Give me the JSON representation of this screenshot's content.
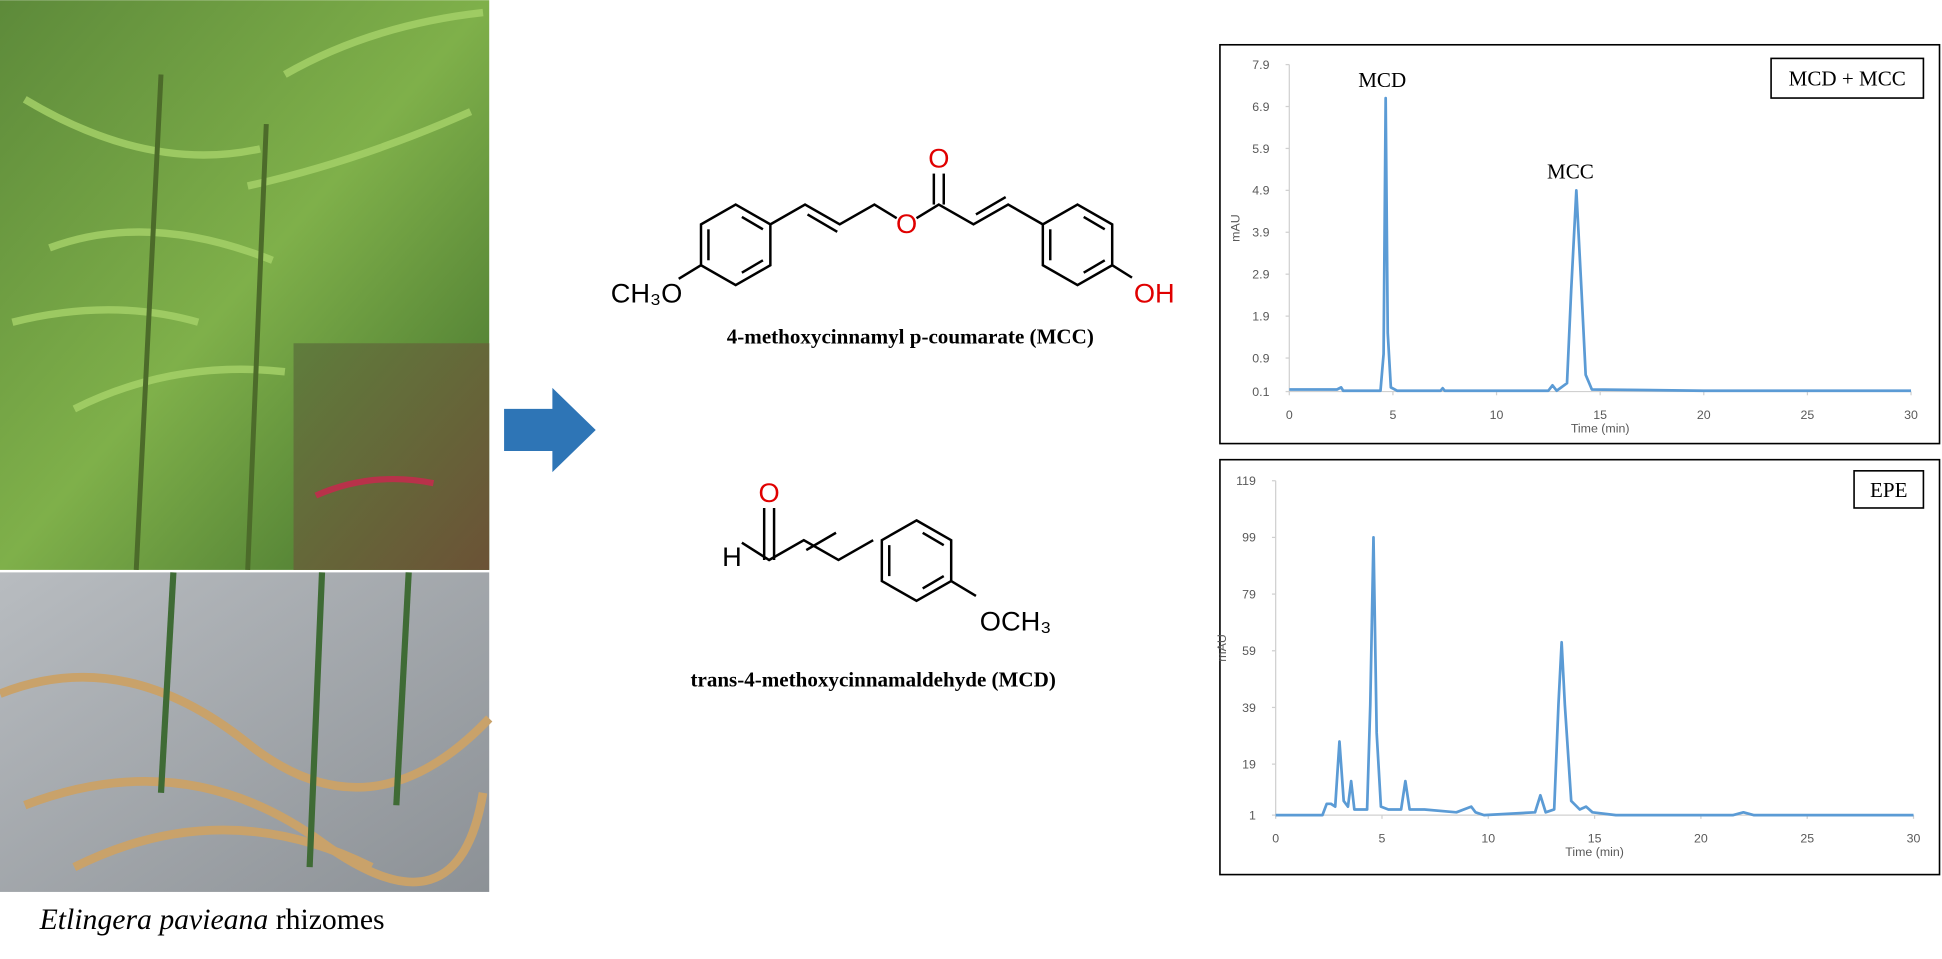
{
  "caption": {
    "species": "Etlingera pavieana",
    "part": "rhizomes"
  },
  "compounds": [
    {
      "name": "4-methoxycinnamyl p-coumarate (MCC)",
      "atoms": [
        "O",
        "CH₃O",
        "O",
        "OH"
      ]
    },
    {
      "name": "trans-4-methoxycinnamaldehyde (MCD)",
      "atoms": [
        "O",
        "H",
        "OCH₃"
      ]
    }
  ],
  "chart_data": [
    {
      "type": "line",
      "xlabel": "Time (min)",
      "ylabel": "mAU",
      "legend": "MCD + MCC",
      "annotations": [
        "MCD",
        "MCC"
      ],
      "x": [
        0,
        2.3,
        2.5,
        2.6,
        4.4,
        4.55,
        4.65,
        4.75,
        4.9,
        5.2,
        7.3,
        7.4,
        7.5,
        12.5,
        12.7,
        12.9,
        13.4,
        13.6,
        13.85,
        14.1,
        14.3,
        14.6,
        20,
        30
      ],
      "series": [
        {
          "color": "#5b9bd5",
          "values": [
            0.15,
            0.15,
            0.2,
            0.12,
            0.12,
            1,
            7.1,
            1.5,
            0.2,
            0.12,
            0.12,
            0.18,
            0.12,
            0.12,
            0.25,
            0.12,
            0.3,
            2.5,
            4.9,
            2.5,
            0.5,
            0.15,
            0.12,
            0.12
          ]
        }
      ],
      "xlim": [
        0,
        30
      ],
      "xticks": [
        0,
        5,
        10,
        15,
        20,
        25,
        30
      ],
      "ylim": [
        0.1,
        7.9
      ],
      "yticks": [
        0.1,
        0.9,
        1.9,
        2.9,
        3.9,
        4.9,
        5.9,
        6.9,
        7.9
      ]
    },
    {
      "type": "line",
      "xlabel": "Time (min)",
      "ylabel": "mAU",
      "legend": "EPE",
      "x": [
        0,
        2.2,
        2.4,
        2.6,
        2.8,
        3.0,
        3.2,
        3.4,
        3.55,
        3.7,
        4.3,
        4.45,
        4.6,
        4.75,
        4.95,
        5.3,
        5.9,
        6.1,
        6.3,
        7.0,
        8.5,
        9.2,
        9.4,
        9.8,
        12.2,
        12.45,
        12.7,
        13.1,
        13.3,
        13.45,
        13.6,
        13.9,
        14.3,
        14.6,
        14.9,
        16,
        21.5,
        22,
        22.5,
        30
      ],
      "series": [
        {
          "color": "#5b9bd5",
          "values": [
            1,
            1,
            5,
            5,
            4,
            27,
            6,
            4,
            13,
            3,
            3,
            40,
            99,
            30,
            4,
            3,
            3,
            13,
            3,
            3,
            2,
            4,
            2,
            1,
            2,
            8,
            2,
            3,
            40,
            62,
            40,
            6,
            3,
            4,
            2,
            1,
            1,
            2,
            1,
            1
          ]
        }
      ],
      "xlim": [
        0,
        30
      ],
      "xticks": [
        0,
        5,
        10,
        15,
        20,
        25,
        30
      ],
      "ylim": [
        1,
        119
      ],
      "yticks": [
        1,
        19,
        39,
        59,
        79,
        99,
        119
      ]
    }
  ]
}
